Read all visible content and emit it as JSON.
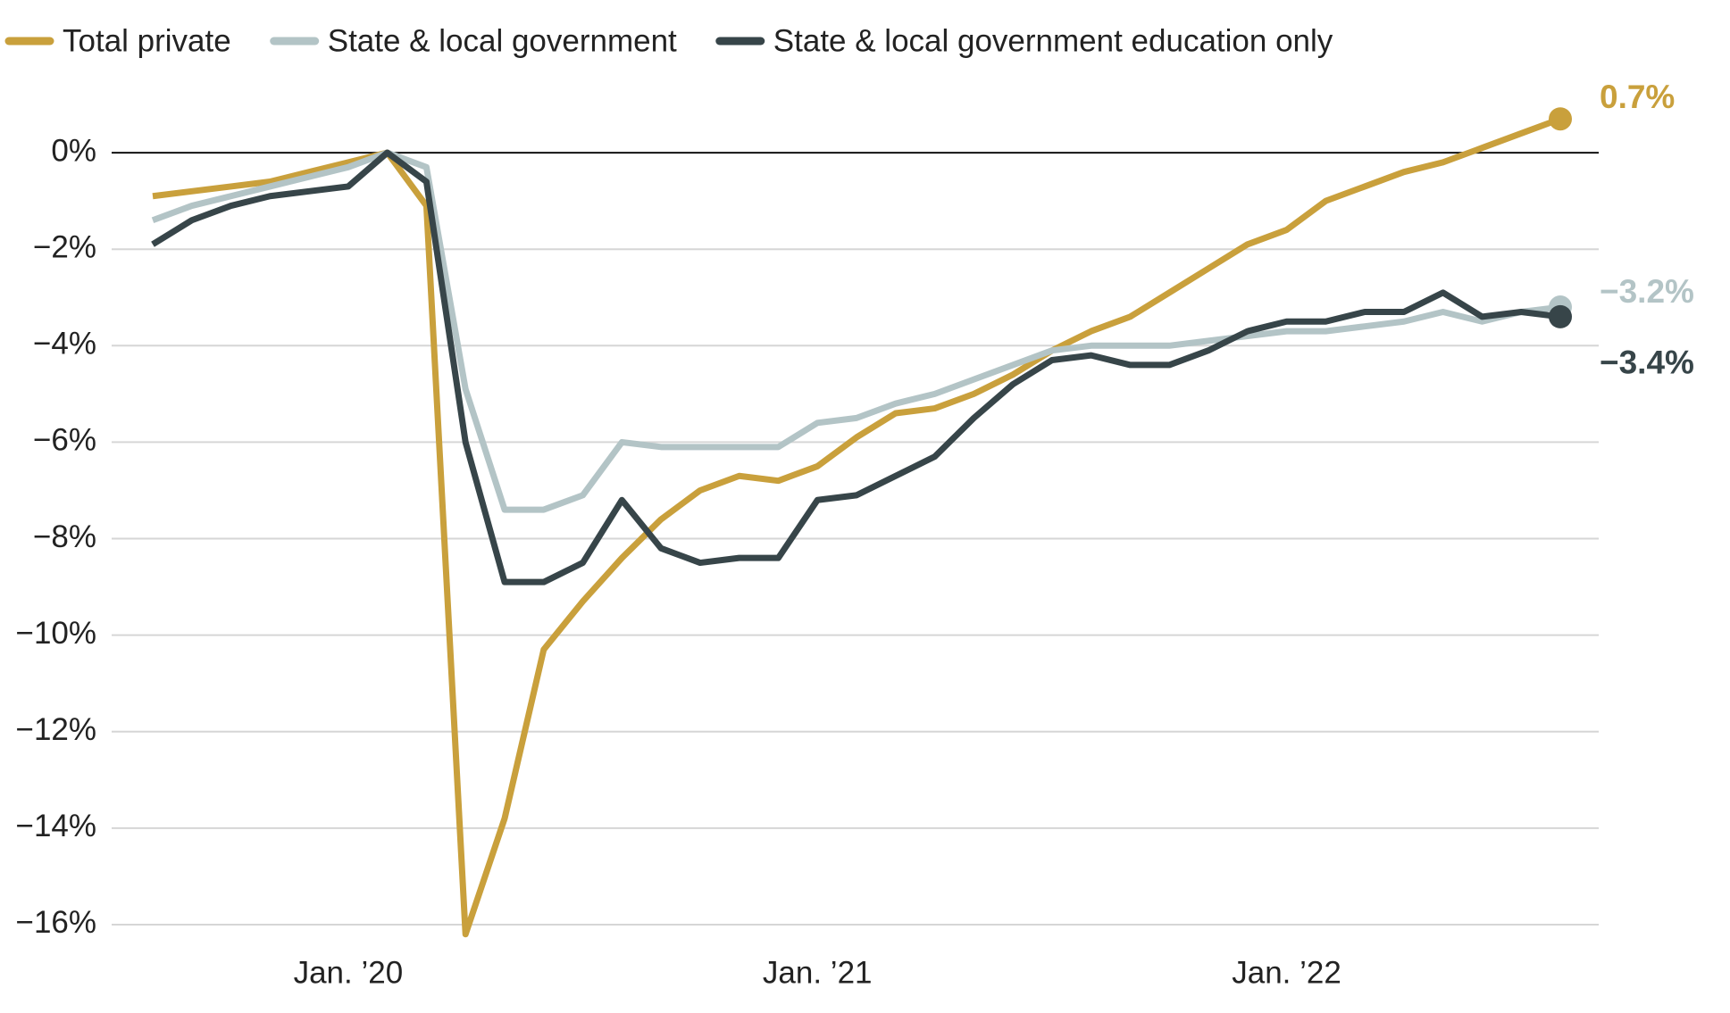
{
  "chart_data": {
    "type": "line",
    "categories": [
      null,
      null,
      null,
      null,
      null,
      "Jan. ’20",
      null,
      null,
      null,
      null,
      null,
      null,
      null,
      null,
      null,
      null,
      null,
      "Jan. ’21",
      null,
      null,
      null,
      null,
      null,
      null,
      null,
      null,
      null,
      null,
      null,
      "Jan. ’22",
      null,
      null,
      null,
      null,
      null,
      null,
      null
    ],
    "series": [
      {
        "name": "Total private",
        "color": "#c9a03c",
        "values": [
          -0.9,
          -0.8,
          -0.7,
          -0.6,
          -0.4,
          -0.2,
          0,
          -1.1,
          -16.2,
          -13.8,
          -10.3,
          -9.3,
          -8.4,
          -7.6,
          -7.0,
          -6.7,
          -6.8,
          -6.5,
          -5.9,
          -5.4,
          -5.3,
          -5.0,
          -4.6,
          -4.1,
          -3.7,
          -3.4,
          -2.9,
          -2.4,
          -1.9,
          -1.6,
          -1.0,
          -0.7,
          -0.4,
          -0.2,
          0.1,
          0.4,
          0.7
        ],
        "value_labels": [
          null,
          null,
          null,
          null,
          null,
          null,
          null,
          null,
          null,
          null,
          null,
          null,
          null,
          null,
          null,
          null,
          null,
          null,
          null,
          null,
          null,
          null,
          null,
          null,
          null,
          null,
          null,
          null,
          null,
          null,
          null,
          null,
          null,
          null,
          null,
          null,
          "0.7%"
        ]
      },
      {
        "name": "State & local government",
        "color": "#b3c4c6",
        "values": [
          -1.4,
          -1.1,
          -0.9,
          -0.7,
          -0.5,
          -0.3,
          0,
          -0.3,
          -4.9,
          -7.4,
          -7.4,
          -7.1,
          -6.0,
          -6.1,
          -6.1,
          -6.1,
          -6.1,
          -5.6,
          -5.5,
          -5.2,
          -5.0,
          -4.7,
          -4.4,
          -4.1,
          -4.0,
          -4.0,
          -4.0,
          -3.9,
          -3.8,
          -3.7,
          -3.7,
          -3.6,
          -3.5,
          -3.3,
          -3.5,
          -3.3,
          -3.2
        ],
        "value_labels": [
          null,
          null,
          null,
          null,
          null,
          null,
          null,
          null,
          null,
          null,
          null,
          null,
          null,
          null,
          null,
          null,
          null,
          null,
          null,
          null,
          null,
          null,
          null,
          null,
          null,
          null,
          null,
          null,
          null,
          null,
          null,
          null,
          null,
          null,
          null,
          null,
          "−3.2%"
        ]
      },
      {
        "name": "State & local government education only",
        "color": "#374549",
        "values": [
          -1.9,
          -1.4,
          -1.1,
          -0.9,
          -0.8,
          -0.7,
          0,
          -0.6,
          -6.0,
          -8.9,
          -8.9,
          -8.5,
          -7.2,
          -8.2,
          -8.5,
          -8.4,
          -8.4,
          -7.2,
          -7.1,
          -6.7,
          -6.3,
          -5.5,
          -4.8,
          -4.3,
          -4.2,
          -4.4,
          -4.4,
          -4.1,
          -3.7,
          -3.5,
          -3.5,
          -3.3,
          -3.3,
          -2.9,
          -3.4,
          -3.3,
          -3.4
        ],
        "value_labels": [
          null,
          null,
          null,
          null,
          null,
          null,
          null,
          null,
          null,
          null,
          null,
          null,
          null,
          null,
          null,
          null,
          null,
          null,
          null,
          null,
          null,
          null,
          null,
          null,
          null,
          null,
          null,
          null,
          null,
          null,
          null,
          null,
          null,
          null,
          null,
          null,
          "−3.4%"
        ]
      }
    ],
    "ylim": [
      -16.5,
      1.5
    ],
    "yticks": [
      {
        "value": 0,
        "label": "0%"
      },
      {
        "value": -2,
        "label": "−2%"
      },
      {
        "value": -4,
        "label": "−4%"
      },
      {
        "value": -6,
        "label": "−6%"
      },
      {
        "value": -8,
        "label": "−8%"
      },
      {
        "value": -10,
        "label": "−10%"
      },
      {
        "value": -12,
        "label": "−12%"
      },
      {
        "value": -14,
        "label": "−14%"
      },
      {
        "value": -16,
        "label": "−16%"
      }
    ],
    "grid": true
  }
}
